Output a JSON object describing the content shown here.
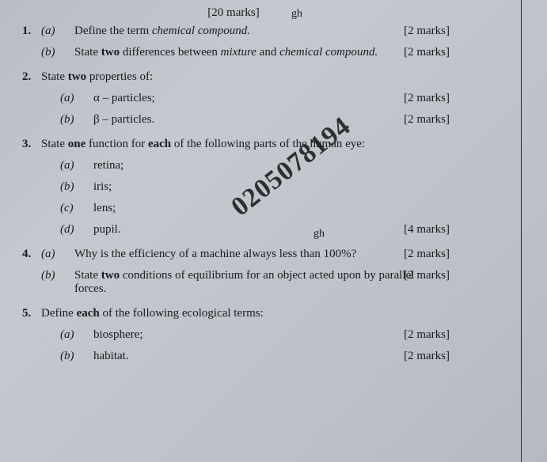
{
  "header": {
    "marks_total": "[20 marks]",
    "gh": "gh"
  },
  "watermark": "0205078194",
  "q1": {
    "num": "1.",
    "a_label": "(a)",
    "a_text_pre": "Define the term ",
    "a_text_italic": "chemical compound.",
    "a_marks": "[2 marks]",
    "b_label": "(b)",
    "b_text_pre": "State ",
    "b_text_bold": "two",
    "b_text_mid": " differences between ",
    "b_text_it1": "mixture",
    "b_text_and": " and ",
    "b_text_it2": "chemical compound.",
    "b_marks": "[2 marks]"
  },
  "q2": {
    "num": "2.",
    "stem_pre": "State ",
    "stem_bold": "two",
    "stem_post": " properties of:",
    "a_label": "(a)",
    "a_text": "α – particles;",
    "a_marks": "[2 marks]",
    "b_label": "(b)",
    "b_text": "β – particles.",
    "b_marks": "[2 marks]"
  },
  "q3": {
    "num": "3.",
    "stem_pre": "State ",
    "stem_bold1": "one",
    "stem_mid": " function for ",
    "stem_bold2": "each",
    "stem_post": " of the following parts of the human eye:",
    "a_label": "(a)",
    "a_text": "retina;",
    "b_label": "(b)",
    "b_text": "iris;",
    "gh": "gh",
    "c_label": "(c)",
    "c_text": "lens;",
    "d_label": "(d)",
    "d_text": "pupil.",
    "d_marks": "[4 marks]"
  },
  "q4": {
    "num": "4.",
    "a_label": "(a)",
    "a_text": "Why is the efficiency of a machine always less than 100%?",
    "a_marks": "[2 marks]",
    "b_label": "(b)",
    "b_text_pre": "State ",
    "b_text_bold": "two",
    "b_text_post": " conditions of equilibrium for an object acted upon by parallel forces.",
    "b_marks": "[2 marks]"
  },
  "q5": {
    "num": "5.",
    "stem_pre": "Define ",
    "stem_bold": "each",
    "stem_post": " of the following ecological terms:",
    "a_label": "(a)",
    "a_text": "biosphere;",
    "a_marks": "[2 marks]",
    "b_label": "(b)",
    "b_text": "habitat.",
    "b_marks": "[2 marks]"
  }
}
